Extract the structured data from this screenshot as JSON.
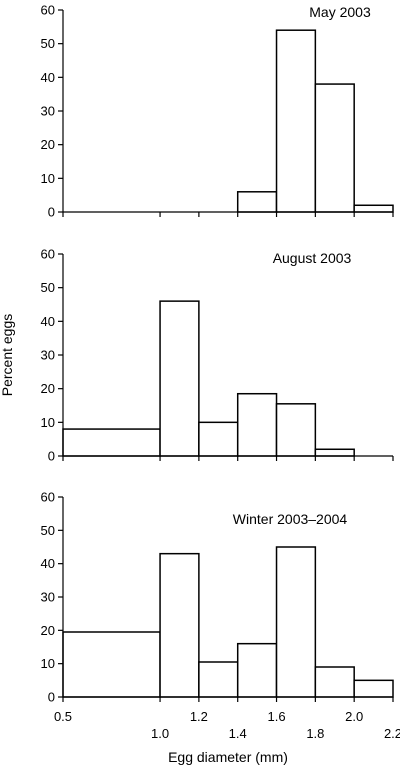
{
  "chart_data": {
    "type": "bar",
    "xlabel": "Egg diameter (mm)",
    "ylabel": "Percent eggs",
    "x_range": [
      0.5,
      2.2
    ],
    "ylim": [
      0,
      60
    ],
    "y_ticks": [
      "0",
      "10",
      "20",
      "30",
      "40",
      "50",
      "60"
    ],
    "x_tick_labels": [
      {
        "value": 0.5,
        "label": "0.5",
        "row": "upper"
      },
      {
        "value": 1.0,
        "label": "1.0",
        "row": "lower"
      },
      {
        "value": 1.2,
        "label": "1.2",
        "row": "upper"
      },
      {
        "value": 1.4,
        "label": "1.4",
        "row": "lower"
      },
      {
        "value": 1.6,
        "label": "1.6",
        "row": "upper"
      },
      {
        "value": 1.8,
        "label": "1.8",
        "row": "lower"
      },
      {
        "value": 2.0,
        "label": "2.0",
        "row": "upper"
      },
      {
        "value": 2.2,
        "label": "2.2",
        "row": "lower"
      }
    ],
    "bin_edges": [
      0.5,
      1.0,
      1.2,
      1.4,
      1.6,
      1.8,
      2.0,
      2.2
    ],
    "panels": [
      {
        "title": "May 2003",
        "values": [
          0,
          0,
          0,
          6,
          54,
          38,
          2
        ]
      },
      {
        "title": "August 2003",
        "values": [
          8,
          46,
          10,
          18.5,
          15.5,
          2,
          0
        ]
      },
      {
        "title": "Winter 2003–2004",
        "values": [
          19.5,
          43,
          10.5,
          16,
          45,
          9,
          5
        ]
      }
    ]
  }
}
